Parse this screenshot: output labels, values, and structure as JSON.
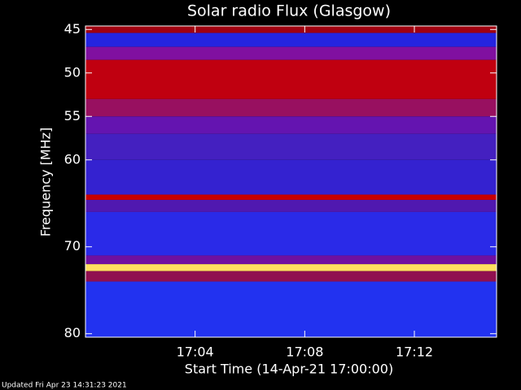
{
  "chart_data": {
    "type": "spectrogram",
    "title": "Solar radio Flux (Glasgow)",
    "x_label": "Start Time (14-Apr-21 17:00:00)",
    "y_label": "Frequency [MHz]",
    "xlim": [
      0,
      15
    ],
    "xticks": [
      {
        "value": 4,
        "label": "17:04"
      },
      {
        "value": 8,
        "label": "17:08"
      },
      {
        "value": 12,
        "label": "17:12"
      }
    ],
    "ylim": [
      80.4,
      44.6
    ],
    "yticks": [
      45,
      50,
      55,
      60,
      70,
      80
    ],
    "bands": [
      {
        "from": 44.6,
        "to": 45.4,
        "color": "#a00010"
      },
      {
        "from": 45.4,
        "to": 47,
        "color": "#2424e0"
      },
      {
        "from": 47,
        "to": 48.5,
        "color": "#8010a0"
      },
      {
        "from": 48.5,
        "to": 53,
        "color": "#c00010"
      },
      {
        "from": 53,
        "to": 55,
        "color": "#981060"
      },
      {
        "from": 55,
        "to": 57,
        "color": "#6414b0"
      },
      {
        "from": 57,
        "to": 60,
        "color": "#4420c0"
      },
      {
        "from": 60,
        "to": 64,
        "color": "#3422d0"
      },
      {
        "from": 64,
        "to": 64.6,
        "color": "#c80000"
      },
      {
        "from": 64.6,
        "to": 66,
        "color": "#5018b0"
      },
      {
        "from": 66,
        "to": 71,
        "color": "#2a2ae8"
      },
      {
        "from": 71,
        "to": 72,
        "color": "#7010a0"
      },
      {
        "from": 72,
        "to": 72.8,
        "color": "#ffe060"
      },
      {
        "from": 72.8,
        "to": 74,
        "color": "#901050"
      },
      {
        "from": 74,
        "to": 80.4,
        "color": "#2232f0"
      }
    ],
    "footer": "Updated Fri Apr 23 14:31:23 2021"
  }
}
